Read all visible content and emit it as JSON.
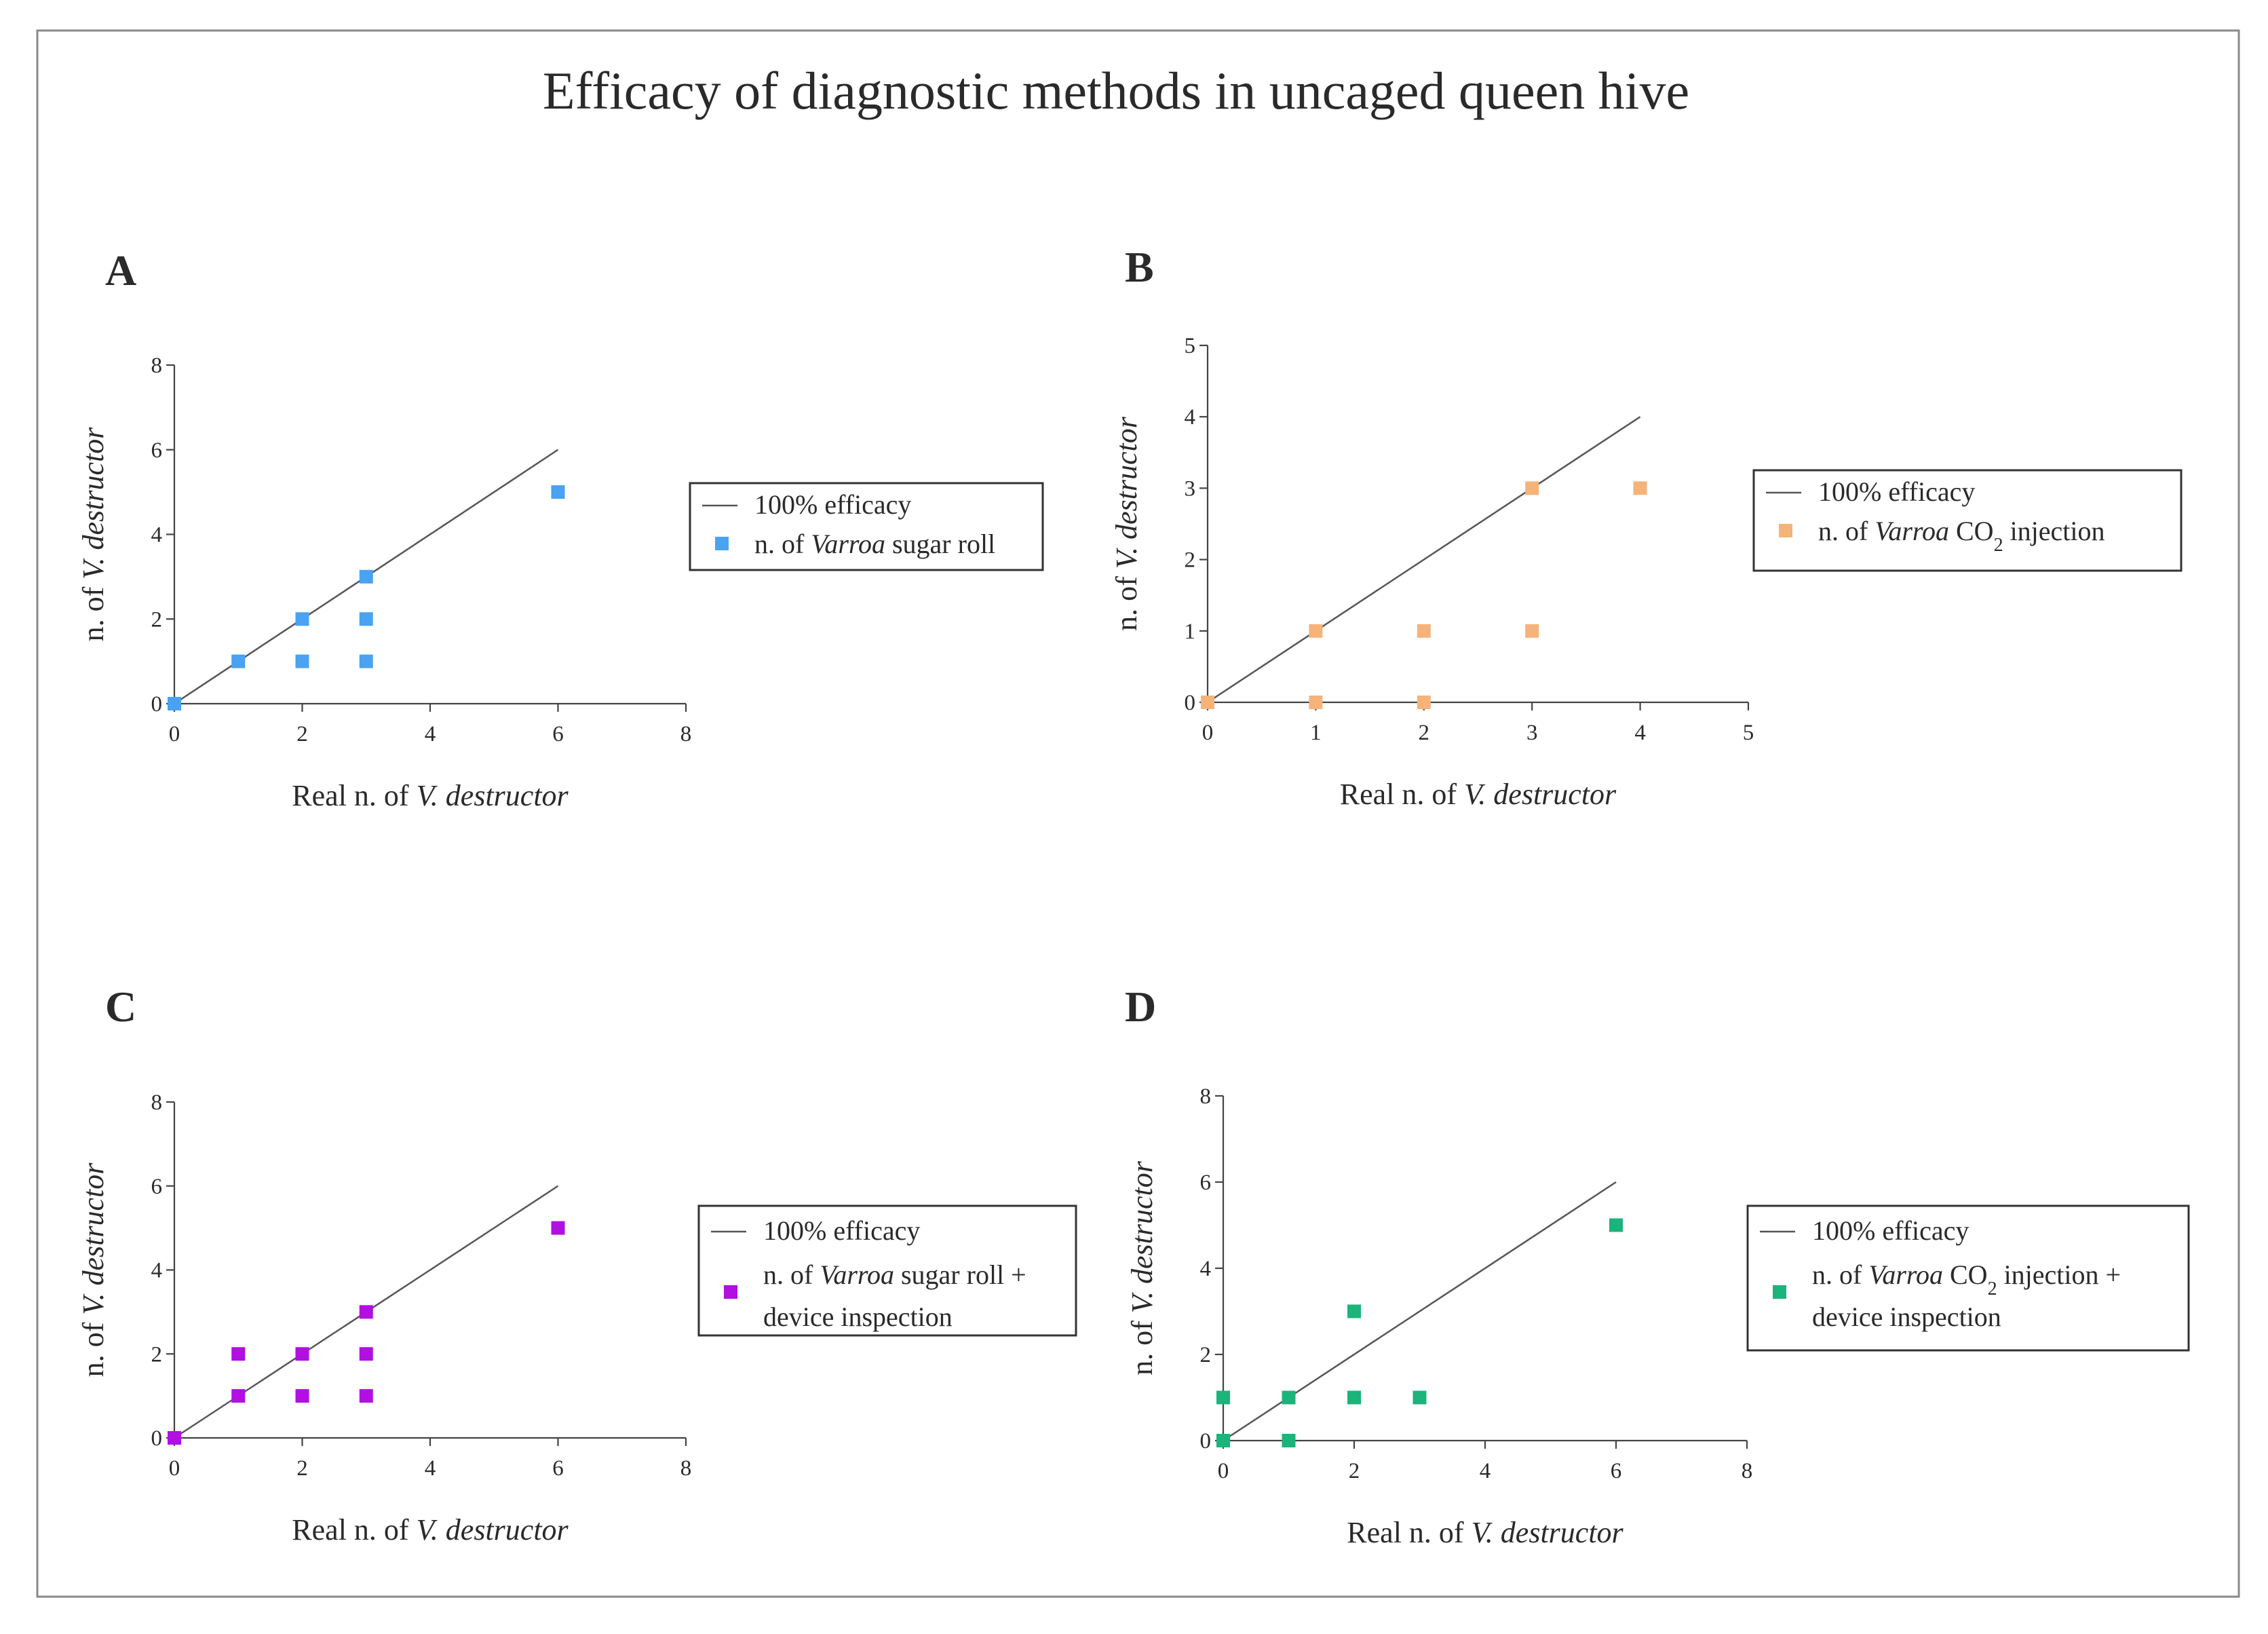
{
  "figure": {
    "title": "Efficacy of diagnostic methods in uncaged queen hive"
  },
  "chart_data": [
    {
      "panel": "A",
      "type": "scatter",
      "xlabel": "Real n. of V. destructor",
      "ylabel": "n. of V. destructor",
      "xlim": [
        0,
        8
      ],
      "ylim": [
        0,
        8
      ],
      "xticks": [
        "0",
        "2",
        "4",
        "6",
        "8"
      ],
      "yticks": [
        "0",
        "2",
        "4",
        "6",
        "8"
      ],
      "legend_position": "right",
      "reference_line": {
        "name": "100% efficacy",
        "x": [
          0,
          6
        ],
        "y": [
          0,
          6
        ]
      },
      "series": [
        {
          "name": "n. of Varroa sugar roll",
          "color": "#4aa3f0",
          "x": [
            0,
            1,
            2,
            2,
            3,
            3,
            3,
            6
          ],
          "y": [
            0,
            1,
            2,
            1,
            3,
            2,
            1,
            5
          ]
        }
      ]
    },
    {
      "panel": "B",
      "type": "scatter",
      "xlabel": "Real n. of V. destructor",
      "ylabel": "n. of V. destructor",
      "xlim": [
        0,
        5
      ],
      "ylim": [
        0,
        5
      ],
      "xticks": [
        "0",
        "1",
        "2",
        "3",
        "4",
        "5"
      ],
      "yticks": [
        "0",
        "1",
        "2",
        "3",
        "4",
        "5"
      ],
      "legend_position": "right",
      "reference_line": {
        "name": "100% efficacy",
        "x": [
          0,
          4
        ],
        "y": [
          0,
          4
        ]
      },
      "series": [
        {
          "name": "n. of Varroa CO2 injection",
          "color": "#f5b37a",
          "x": [
            0,
            1,
            1,
            2,
            2,
            3,
            3,
            4
          ],
          "y": [
            0,
            1,
            0,
            1,
            0,
            3,
            1,
            3
          ]
        }
      ]
    },
    {
      "panel": "C",
      "type": "scatter",
      "xlabel": "Real n. of V. destructor",
      "ylabel": "n. of V. destructor",
      "xlim": [
        0,
        8
      ],
      "ylim": [
        0,
        8
      ],
      "xticks": [
        "0",
        "2",
        "4",
        "6",
        "8"
      ],
      "yticks": [
        "0",
        "2",
        "4",
        "6",
        "8"
      ],
      "legend_position": "right",
      "reference_line": {
        "name": "100% efficacy",
        "x": [
          0,
          6
        ],
        "y": [
          0,
          6
        ]
      },
      "series": [
        {
          "name": "n. of Varroa sugar roll + device inspection",
          "color": "#b010e0",
          "x": [
            0,
            1,
            1,
            2,
            2,
            3,
            3,
            3,
            6
          ],
          "y": [
            0,
            2,
            1,
            2,
            1,
            3,
            2,
            1,
            5
          ]
        }
      ]
    },
    {
      "panel": "D",
      "type": "scatter",
      "xlabel": "Real n. of V. destructor",
      "ylabel": "n. of V. destructor",
      "xlim": [
        0,
        8
      ],
      "ylim": [
        0,
        8
      ],
      "xticks": [
        "0",
        "2",
        "4",
        "6",
        "8"
      ],
      "yticks": [
        "0",
        "2",
        "4",
        "6",
        "8"
      ],
      "legend_position": "right",
      "reference_line": {
        "name": "100% efficacy",
        "x": [
          0,
          6
        ],
        "y": [
          0,
          6
        ]
      },
      "series": [
        {
          "name": "n. of Varroa CO2 injection + device inspection",
          "color": "#1bb47a",
          "x": [
            0,
            0,
            1,
            1,
            2,
            2,
            3,
            6
          ],
          "y": [
            0,
            1,
            1,
            0,
            3,
            1,
            1,
            5
          ]
        }
      ]
    }
  ]
}
